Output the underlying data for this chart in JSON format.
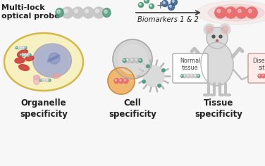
{
  "bg_color": "#f7f7f7",
  "title_text1": "Multi-lock",
  "title_text2": "optical probe",
  "biomarkers_text": "Biomarkers 1 & 2",
  "label1": "Organelle\nspecificity",
  "label2": "Cell\nspecificity",
  "label3": "Tissue\nspecificity",
  "probe_spheres_color": "#c8c8c8",
  "probe_lock_color": "#4a9a7a",
  "activated_color": "#e87070",
  "biomarker1_color": "#4a9a7a",
  "biomarker2_color": "#3a6090",
  "arrow_color": "#444444",
  "cell_outline_color": "#d4b84a",
  "cell_fill_color": "#f7f0c0",
  "nucleus_color": "#9098c8",
  "normal_tissue_box_bg": "#ffffff",
  "disease_site_box_bg": "#fdecea",
  "label_fontsize": 8.5,
  "title_fontsize": 8.0,
  "normal_tissue_text": "Normal\ntissue",
  "disease_site_text": "Disease\nsite"
}
